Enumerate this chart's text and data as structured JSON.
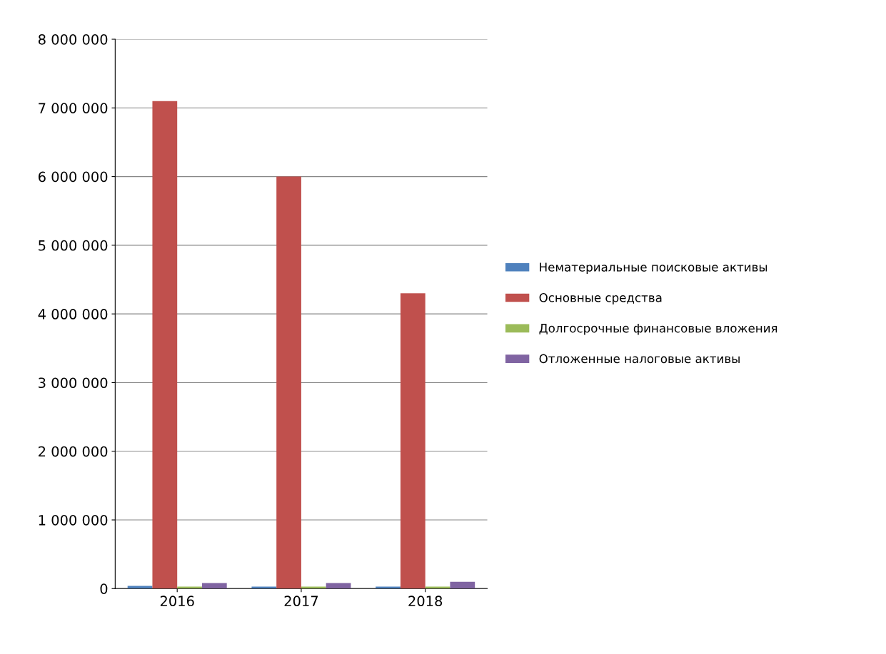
{
  "chart_data": {
    "type": "bar",
    "categories": [
      "2016",
      "2017",
      "2018"
    ],
    "series": [
      {
        "name": "Нематериальные поисковые активы",
        "color": "#4f81bd",
        "values": [
          40000,
          30000,
          30000
        ]
      },
      {
        "name": "Основные средства",
        "color": "#c0504d",
        "values": [
          7100000,
          6000000,
          4300000
        ]
      },
      {
        "name": "Долгосрочные финансовые вложения",
        "color": "#9bbb59",
        "values": [
          30000,
          30000,
          30000
        ]
      },
      {
        "name": "Отложенные налоговые активы",
        "color": "#8064a2",
        "values": [
          80000,
          80000,
          100000
        ]
      }
    ],
    "ylim": [
      0,
      8000000
    ],
    "yticks": [
      {
        "value": 0,
        "label": "0"
      },
      {
        "value": 1000000,
        "label": "1 000 000"
      },
      {
        "value": 2000000,
        "label": "2 000 000"
      },
      {
        "value": 3000000,
        "label": "3 000 000"
      },
      {
        "value": 4000000,
        "label": "4 000 000"
      },
      {
        "value": 5000000,
        "label": "5 000 000"
      },
      {
        "value": 6000000,
        "label": "6 000 000"
      },
      {
        "value": 7000000,
        "label": "7 000 000"
      },
      {
        "value": 8000000,
        "label": "8 000 000"
      }
    ],
    "grid": "y",
    "legend": "right"
  }
}
